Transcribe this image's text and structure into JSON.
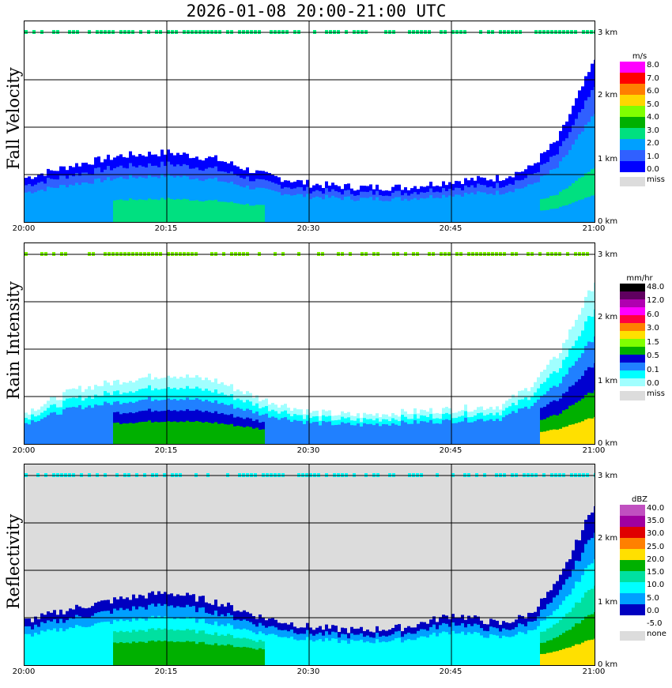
{
  "title": "2026-01-08   20:00-21:00 UTC",
  "x_ticks": [
    "20:00",
    "20:15",
    "20:30",
    "20:45",
    "21:00"
  ],
  "y_ticks": [
    "0 km",
    "1 km",
    "2 km",
    "3 km"
  ],
  "panels": [
    {
      "label": "Fall Velocity",
      "unit": "m/s",
      "legend_labels": [
        "8.0",
        "7.0",
        "6.0",
        "5.0",
        "4.0",
        "3.0",
        "2.0",
        "1.0",
        "0.0"
      ],
      "legend_colors": [
        "#ff00ff",
        "#ff0000",
        "#ff7f00",
        "#ffd700",
        "#80ff00",
        "#00b000",
        "#00e080",
        "#00a0ff",
        "#3060ff",
        "#0000ff"
      ],
      "missing_label": "miss"
    },
    {
      "label": "Rain Intensity",
      "unit": "mm/hr",
      "legend_labels": [
        "48.0",
        "12.0",
        "6.0",
        "3.0",
        "1.5",
        "0.5",
        "0.1",
        "0.0"
      ],
      "legend_colors": [
        "#000000",
        "#600060",
        "#b000b0",
        "#ff00ff",
        "#ff0040",
        "#ff8000",
        "#ffe000",
        "#80ff00",
        "#00b000",
        "#0000d0",
        "#2080ff",
        "#00ffff",
        "#a0ffff"
      ],
      "missing_label": "miss"
    },
    {
      "label": "Reflectivity",
      "unit": "dBZ",
      "legend_labels": [
        "40.0",
        "35.0",
        "30.0",
        "25.0",
        "20.0",
        "15.0",
        "10.0",
        "5.0",
        "0.0",
        "-5.0"
      ],
      "legend_colors": [
        "#c050c0",
        "#a000a0",
        "#e00000",
        "#ff8000",
        "#ffe000",
        "#00b000",
        "#00e0a0",
        "#00ffff",
        "#00a0ff",
        "#0000c0",
        "#ffffff"
      ],
      "missing_label": "none"
    }
  ],
  "chart_data": [
    {
      "type": "heatmap",
      "title": "Fall Velocity",
      "unit": "m/s",
      "x_range": [
        "20:00",
        "21:00"
      ],
      "y_range_km": [
        0,
        3.3
      ],
      "echo_top_km": {
        "time": [
          "20:00",
          "20:05",
          "20:10",
          "20:15",
          "20:20",
          "20:25",
          "20:30",
          "20:35",
          "20:40",
          "20:45",
          "20:50",
          "20:53",
          "20:56",
          "21:00"
        ],
        "height": [
          0.7,
          0.9,
          1.05,
          1.1,
          1.0,
          0.75,
          0.6,
          0.55,
          0.55,
          0.65,
          0.7,
          0.85,
          1.3,
          2.6
        ]
      },
      "clutter_layer_km": 3.0
    },
    {
      "type": "heatmap",
      "title": "Rain Intensity",
      "unit": "mm/hr",
      "x_range": [
        "20:00",
        "21:00"
      ],
      "y_range_km": [
        0,
        3.3
      ],
      "echo_top_km": {
        "time": [
          "20:00",
          "20:05",
          "20:10",
          "20:15",
          "20:20",
          "20:25",
          "20:30",
          "20:35",
          "20:40",
          "20:45",
          "20:50",
          "20:53",
          "20:56",
          "21:00"
        ],
        "height": [
          0.5,
          0.85,
          1.0,
          1.1,
          1.0,
          0.7,
          0.5,
          0.45,
          0.5,
          0.55,
          0.6,
          0.9,
          1.4,
          2.6
        ]
      },
      "clutter_layer_km": 3.0
    },
    {
      "type": "heatmap",
      "title": "Reflectivity",
      "unit": "dBZ",
      "x_range": [
        "20:00",
        "21:00"
      ],
      "y_range_km": [
        0,
        3.3
      ],
      "echo_top_km": {
        "time": [
          "20:00",
          "20:05",
          "20:10",
          "20:15",
          "20:20",
          "20:25",
          "20:30",
          "20:35",
          "20:40",
          "20:45",
          "20:50",
          "20:53",
          "20:56",
          "21:00"
        ],
        "height": [
          0.7,
          0.9,
          1.05,
          1.15,
          1.0,
          0.75,
          0.6,
          0.55,
          0.6,
          0.8,
          0.65,
          0.8,
          1.3,
          2.6
        ]
      },
      "clutter_layer_km": 3.0
    }
  ]
}
